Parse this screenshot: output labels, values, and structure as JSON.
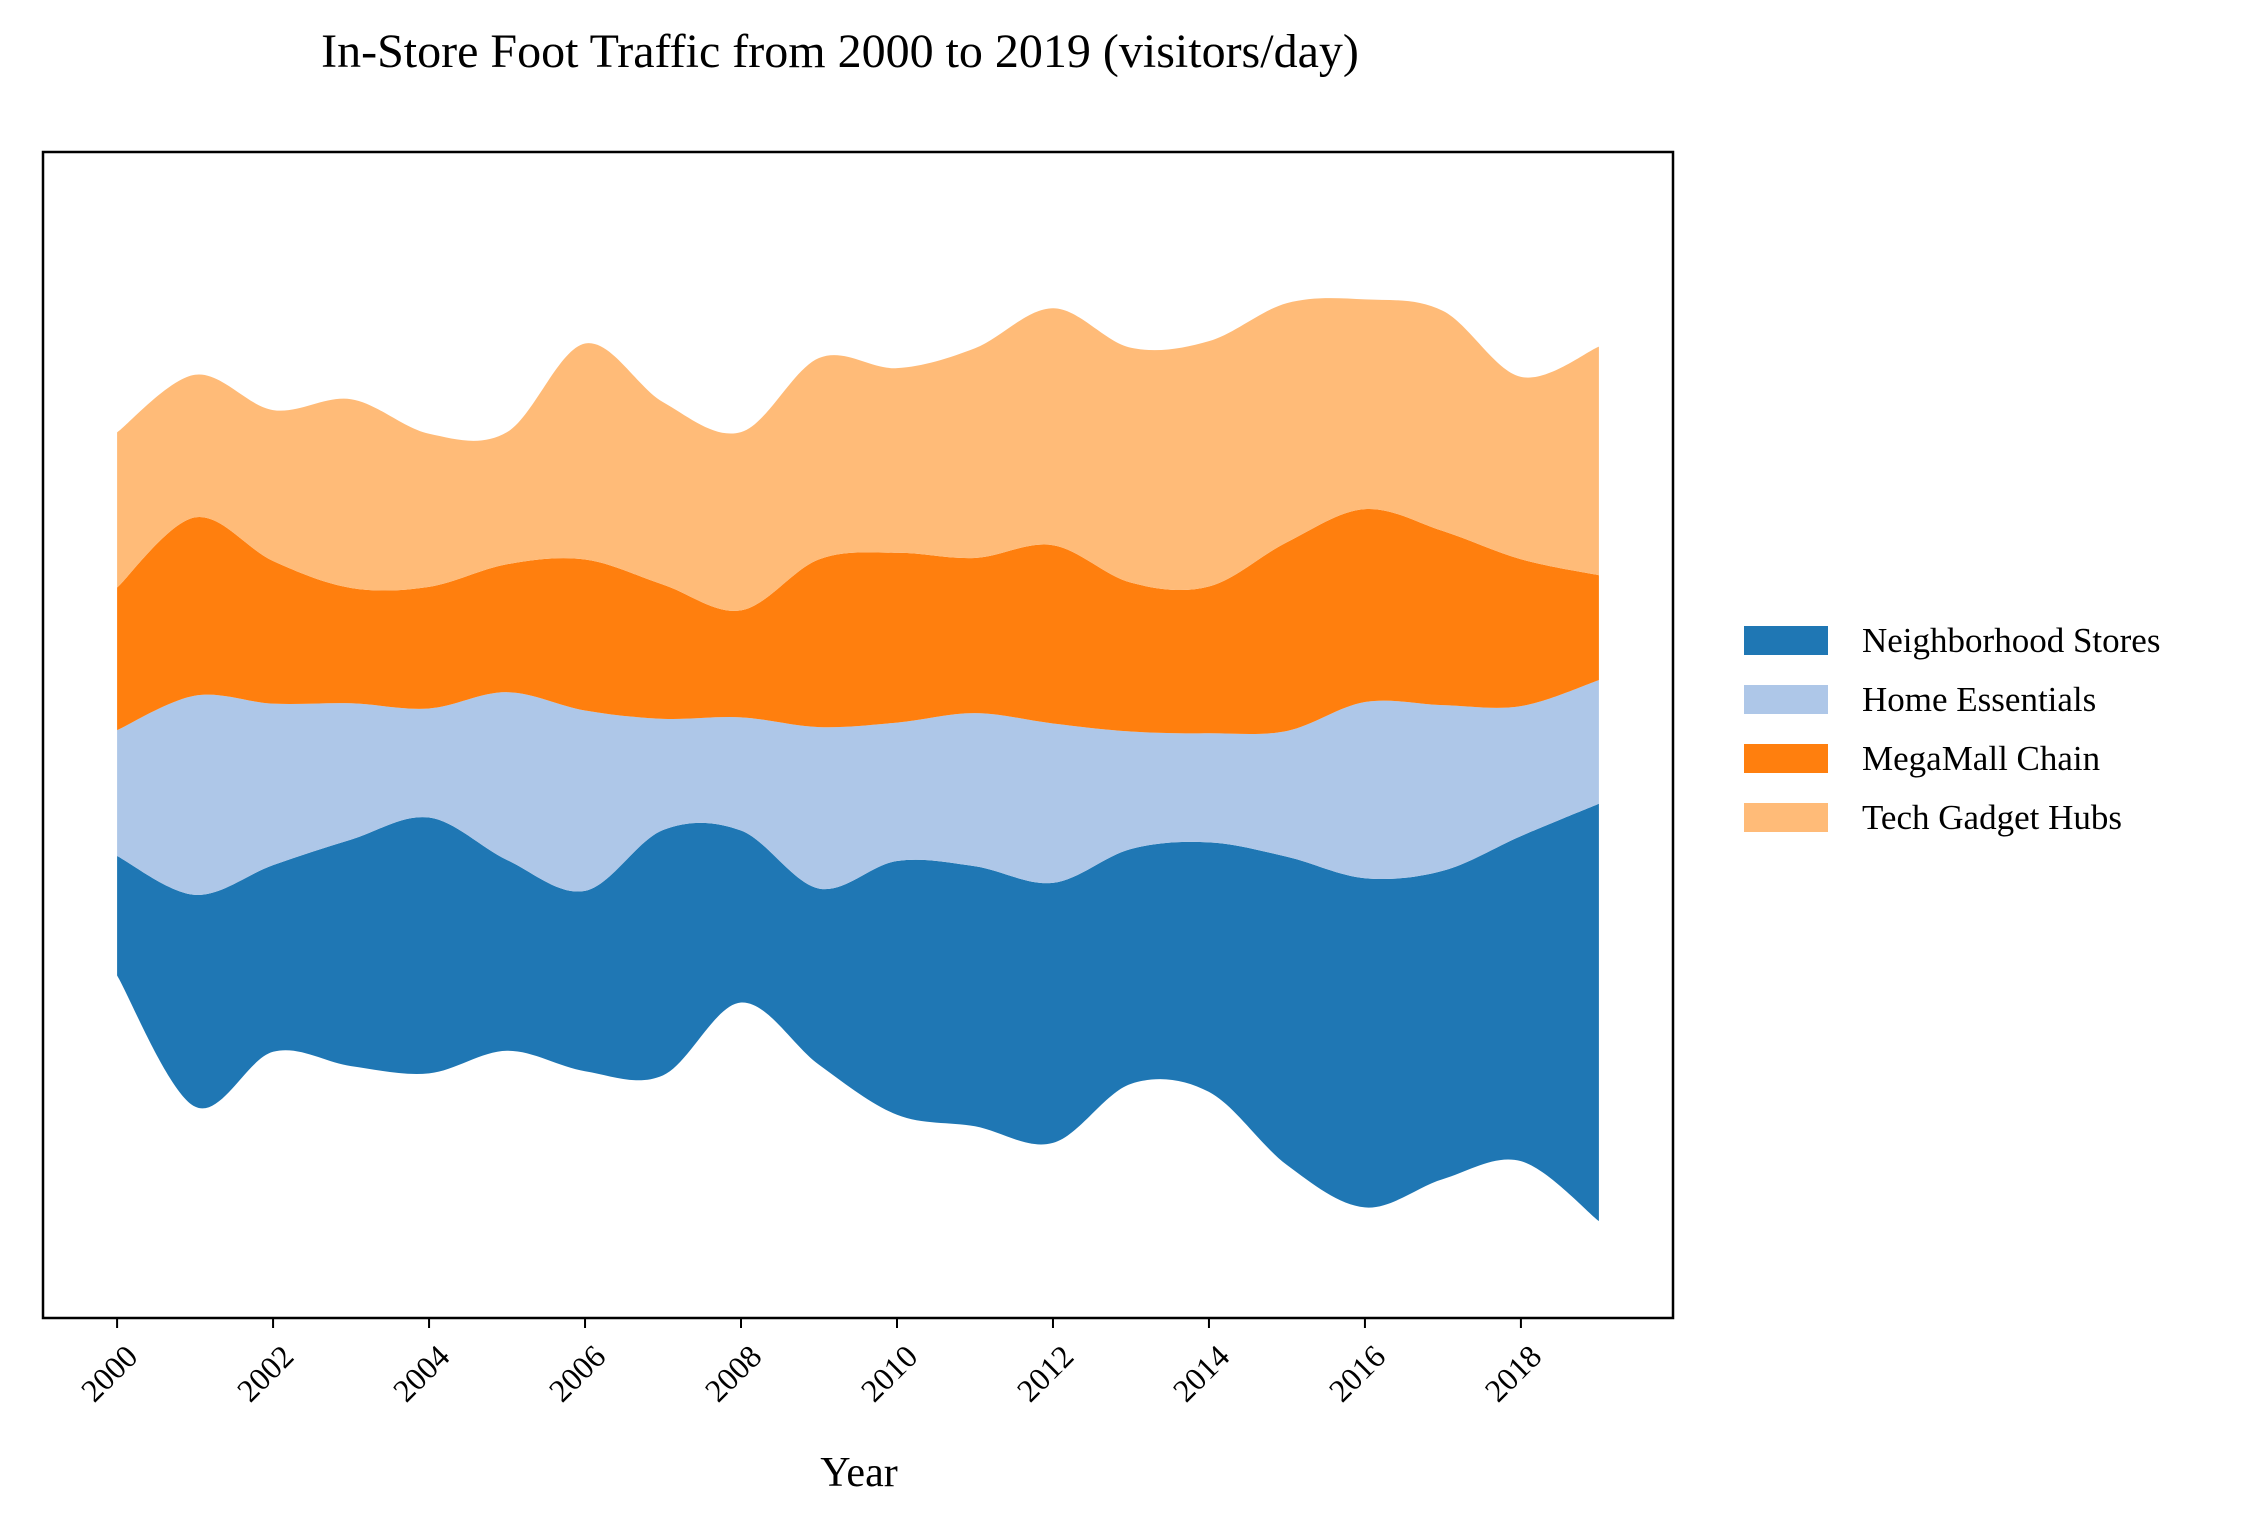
{
  "chart_data": {
    "type": "area",
    "subtype": "streamgraph",
    "baseline": "centered (wiggle)",
    "title": "In-Store Foot Traffic from 2000 to 2019 (visitors/day)",
    "xlabel": "Year",
    "ylabel": "",
    "x": [
      2000,
      2001,
      2002,
      2003,
      2004,
      2005,
      2006,
      2007,
      2008,
      2009,
      2010,
      2011,
      2012,
      2013,
      2014,
      2015,
      2016,
      2017,
      2018,
      2019
    ],
    "xticks": [
      "2000",
      "2002",
      "2004",
      "2006",
      "2008",
      "2010",
      "2012",
      "2014",
      "2016",
      "2018"
    ],
    "xlim": [
      1999.05,
      2019.95
    ],
    "ylim": [
      -2780,
      2780
    ],
    "yticks_visible": false,
    "grid": false,
    "legend_position": "right",
    "series": [
      {
        "name": "Neighborhood Stores",
        "color": "#1f77b4",
        "values": [
          570,
          1010,
          890,
          1080,
          1220,
          910,
          860,
          1170,
          820,
          840,
          1210,
          1240,
          1240,
          1120,
          1190,
          1470,
          1570,
          1470,
          1550,
          1990
        ]
      },
      {
        "name": "Home Essentials",
        "color": "#aec7e8",
        "values": [
          600,
          950,
          770,
          650,
          520,
          800,
          860,
          530,
          540,
          770,
          660,
          730,
          760,
          560,
          520,
          600,
          840,
          790,
          620,
          590
        ]
      },
      {
        "name": "MegaMall Chain",
        "color": "#ff7f0e",
        "values": [
          680,
          850,
          680,
          550,
          580,
          610,
          720,
          640,
          510,
          800,
          810,
          740,
          850,
          710,
          700,
          900,
          920,
          830,
          700,
          500
        ]
      },
      {
        "name": "Tech Gadget Hubs",
        "color": "#ffbb78",
        "values": [
          740,
          680,
          720,
          900,
          730,
          630,
          1030,
          870,
          850,
          960,
          880,
          1000,
          1130,
          1120,
          1170,
          1140,
          1000,
          1050,
          870,
          1090
        ]
      }
    ]
  }
}
